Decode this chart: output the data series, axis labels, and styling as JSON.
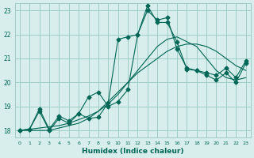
{
  "title": "",
  "xlabel": "Humidex (Indice chaleur)",
  "ylabel": "",
  "bg_color": "#d8eeec",
  "grid_color": "#a0ccc8",
  "line_color": "#006655",
  "xlim": [
    -0.5,
    23.5
  ],
  "ylim": [
    17.7,
    23.3
  ],
  "yticks": [
    18,
    19,
    20,
    21,
    22,
    23
  ],
  "xticks": [
    0,
    1,
    2,
    3,
    4,
    5,
    6,
    7,
    8,
    9,
    10,
    11,
    12,
    13,
    14,
    15,
    16,
    17,
    18,
    19,
    20,
    21,
    22,
    23
  ],
  "series1_x": [
    0,
    1,
    2,
    3,
    4,
    5,
    6,
    7,
    8,
    9,
    10,
    11,
    12,
    13,
    14,
    15,
    16,
    17,
    18,
    19,
    20,
    21,
    22,
    23
  ],
  "series1_y": [
    18.0,
    18.05,
    18.1,
    18.15,
    18.2,
    18.3,
    18.45,
    18.6,
    18.8,
    19.1,
    19.5,
    20.0,
    20.5,
    21.0,
    21.5,
    21.8,
    21.9,
    21.7,
    21.5,
    21.0,
    20.5,
    20.2,
    20.1,
    20.2
  ],
  "series2_x": [
    0,
    1,
    2,
    3,
    4,
    5,
    6,
    7,
    8,
    9,
    10,
    11,
    12,
    13,
    14,
    15,
    16,
    17,
    18,
    19,
    20,
    21,
    22,
    23
  ],
  "series2_y": [
    18.0,
    18.0,
    18.0,
    18.0,
    18.1,
    18.2,
    18.3,
    18.5,
    18.8,
    19.2,
    19.6,
    20.0,
    20.4,
    20.7,
    21.0,
    21.3,
    21.5,
    21.6,
    21.6,
    21.5,
    21.3,
    21.0,
    20.7,
    20.5
  ],
  "series3_x": [
    0,
    1,
    2,
    3,
    4,
    5,
    6,
    7,
    8,
    9,
    10,
    11,
    12,
    13,
    14,
    15,
    16,
    17,
    18,
    19,
    20,
    21,
    22,
    23
  ],
  "series3_y": [
    18.0,
    18.05,
    18.8,
    18.0,
    18.5,
    18.3,
    18.7,
    19.4,
    19.6,
    19.0,
    19.2,
    19.7,
    22.0,
    23.0,
    22.6,
    22.7,
    21.4,
    20.6,
    20.5,
    20.4,
    20.3,
    20.6,
    20.2,
    20.9
  ],
  "series4_x": [
    0,
    1,
    2,
    3,
    4,
    5,
    6,
    7,
    8,
    9,
    10,
    11,
    12,
    13,
    14,
    15,
    16,
    17,
    18,
    19,
    20,
    21,
    22,
    23
  ],
  "series4_y": [
    18.0,
    18.05,
    18.9,
    18.05,
    18.6,
    18.4,
    18.7,
    18.5,
    18.55,
    19.15,
    21.8,
    21.9,
    22.0,
    23.2,
    22.5,
    22.5,
    21.7,
    20.55,
    20.5,
    20.3,
    20.1,
    20.4,
    20.0,
    20.8
  ]
}
